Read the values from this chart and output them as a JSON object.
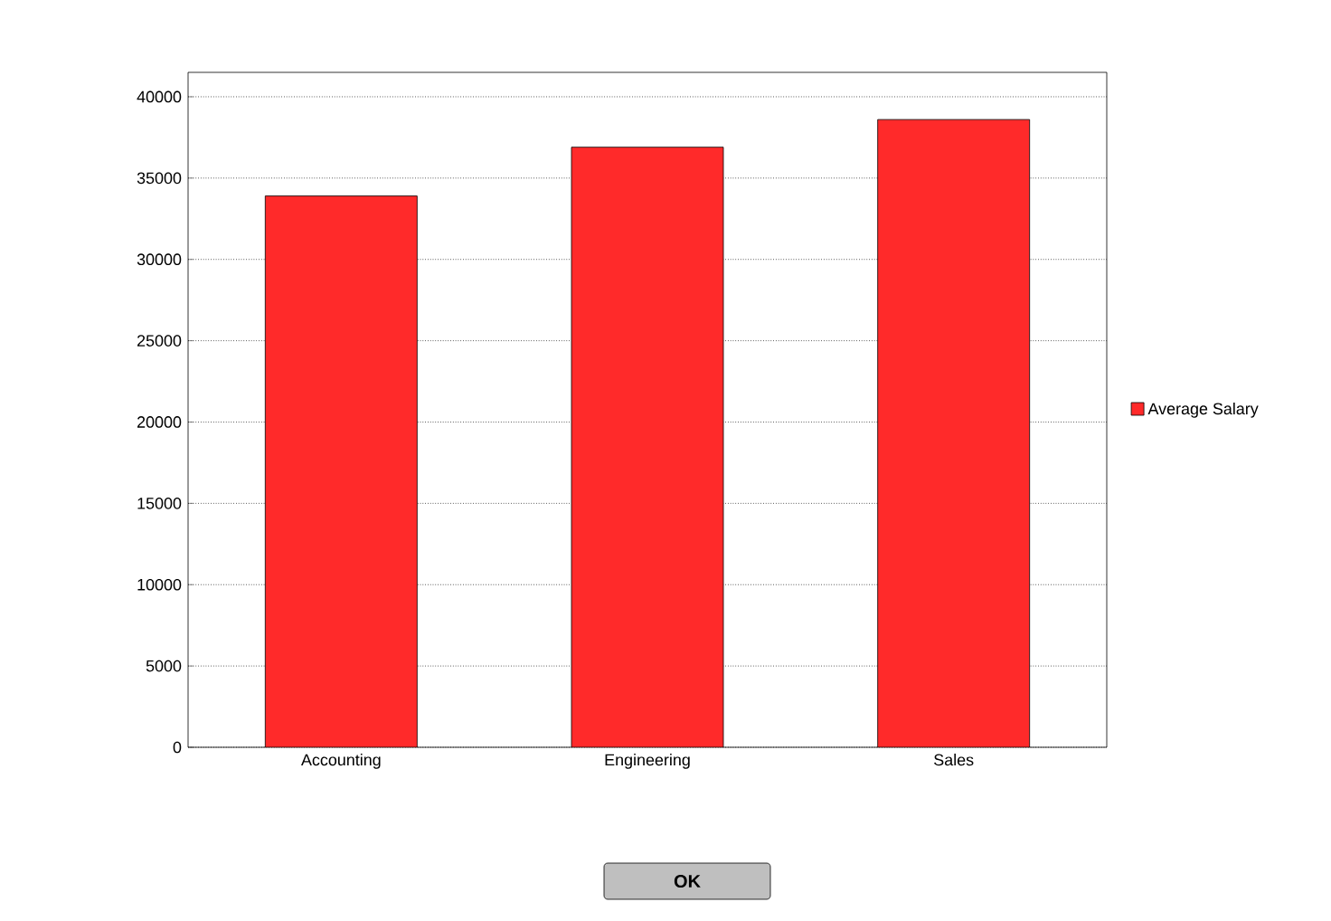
{
  "chart_data": {
    "type": "bar",
    "categories": [
      "Accounting",
      "Engineering",
      "Sales"
    ],
    "series": [
      {
        "name": "Average Salary",
        "color": "#ff2a2a",
        "values": [
          33900,
          36900,
          38600
        ]
      }
    ],
    "ylim": [
      0,
      41500
    ],
    "yticks": [
      0,
      5000,
      10000,
      15000,
      20000,
      25000,
      30000,
      35000,
      40000
    ],
    "grid": "y",
    "legend": "right",
    "annotations": [
      "OK"
    ]
  }
}
